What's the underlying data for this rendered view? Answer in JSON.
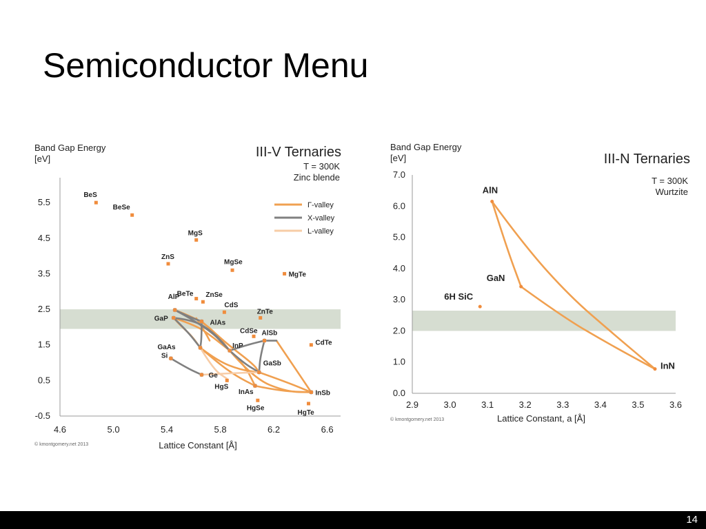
{
  "slide": {
    "title": "Semiconductor Menu",
    "page_number": "14"
  },
  "colors": {
    "gamma": "#f0a050",
    "x_valley": "#808080",
    "l_valley": "#f7cca6",
    "band": "#d6ddd1",
    "point": "#f08c3c"
  },
  "chart_data": [
    {
      "type": "scatter",
      "title": "III-V Ternaries",
      "subtitle": [
        "T = 300K",
        "Zinc blende"
      ],
      "ylabel": [
        "Band Gap Energy",
        "[eV]"
      ],
      "xlabel": "Lattice Constant [Å]",
      "xlim": [
        4.6,
        6.7
      ],
      "ylim": [
        -0.5,
        6.2
      ],
      "xticks": [
        4.6,
        5.0,
        5.4,
        5.8,
        6.2,
        6.6
      ],
      "yticks": [
        -0.5,
        0.5,
        1.5,
        2.5,
        3.5,
        4.5,
        5.5
      ],
      "xtick_labels": [
        "4.6",
        "5.0",
        "5.4",
        "5.8",
        "6.2",
        "6.6"
      ],
      "ytick_labels": [
        "-0.5",
        "0.5",
        "1.5",
        "2.5",
        "3.5",
        "4.5",
        "5.5"
      ],
      "highlight_band": [
        1.95,
        2.5
      ],
      "credit": "© kmontgomery.net 2013",
      "legend": {
        "placement": "right",
        "entries": [
          {
            "label": "Γ-valley",
            "color": "#f0a050"
          },
          {
            "label": "X-valley",
            "color": "#808080"
          },
          {
            "label": "L-valley",
            "color": "#f7cca6"
          }
        ]
      },
      "points": [
        {
          "name": "BeS",
          "x": 4.87,
          "y": 5.5
        },
        {
          "name": "BeSe",
          "x": 5.14,
          "y": 5.15
        },
        {
          "name": "MgS",
          "x": 5.62,
          "y": 4.45
        },
        {
          "name": "ZnS",
          "x": 5.41,
          "y": 3.78
        },
        {
          "name": "MgSe",
          "x": 5.89,
          "y": 3.6
        },
        {
          "name": "MgTe",
          "x": 6.28,
          "y": 3.5
        },
        {
          "name": "ZnSe",
          "x": 5.67,
          "y": 2.71
        },
        {
          "name": "BeTe",
          "x": 5.62,
          "y": 2.8
        },
        {
          "name": "AlAs",
          "x": 5.66,
          "y": 2.16
        },
        {
          "name": "CdS",
          "x": 5.83,
          "y": 2.42
        },
        {
          "name": "ZnTe",
          "x": 6.1,
          "y": 2.26
        },
        {
          "name": "AlP",
          "x": 5.46,
          "y": 2.48
        },
        {
          "name": "GaP",
          "x": 5.45,
          "y": 2.26
        },
        {
          "name": "CdSe",
          "x": 6.05,
          "y": 1.74
        },
        {
          "name": "AlSb",
          "x": 6.13,
          "y": 1.62
        },
        {
          "name": "CdTe",
          "x": 6.48,
          "y": 1.5
        },
        {
          "name": "InP",
          "x": 5.87,
          "y": 1.34
        },
        {
          "name": "GaAs",
          "x": 5.65,
          "y": 1.42
        },
        {
          "name": "Si",
          "x": 5.43,
          "y": 1.12
        },
        {
          "name": "GaSb",
          "x": 6.09,
          "y": 0.73
        },
        {
          "name": "Ge",
          "x": 5.66,
          "y": 0.66
        },
        {
          "name": "HgS",
          "x": 5.85,
          "y": 0.5
        },
        {
          "name": "InAs",
          "x": 6.06,
          "y": 0.35
        },
        {
          "name": "InSb",
          "x": 6.48,
          "y": 0.17
        },
        {
          "name": "HgSe",
          "x": 6.08,
          "y": -0.06
        },
        {
          "name": "HgTe",
          "x": 6.46,
          "y": -0.15
        }
      ],
      "curves": [
        {
          "valley": "gamma",
          "points": [
            [
              5.45,
              2.26
            ],
            [
              5.5,
              2.05
            ],
            [
              5.58,
              1.78
            ],
            [
              5.65,
              1.42
            ]
          ]
        },
        {
          "valley": "gamma",
          "points": [
            [
              5.46,
              2.48
            ],
            [
              5.62,
              2.25
            ],
            [
              5.75,
              1.9
            ],
            [
              5.87,
              1.34
            ]
          ]
        },
        {
          "valley": "gamma",
          "points": [
            [
              5.45,
              2.26
            ],
            [
              5.62,
              2.05
            ],
            [
              5.75,
              1.7
            ],
            [
              5.87,
              1.34
            ]
          ]
        },
        {
          "valley": "gamma",
          "points": [
            [
              5.66,
              2.16
            ],
            [
              5.74,
              1.9
            ],
            [
              5.86,
              1.5
            ],
            [
              6.05,
              0.95
            ],
            [
              6.09,
              0.73
            ]
          ]
        },
        {
          "valley": "gamma",
          "points": [
            [
              5.65,
              1.42
            ],
            [
              5.78,
              1.0
            ],
            [
              5.92,
              0.62
            ],
            [
              6.06,
              0.35
            ]
          ]
        },
        {
          "valley": "gamma",
          "points": [
            [
              5.87,
              1.34
            ],
            [
              5.98,
              0.95
            ],
            [
              6.06,
              0.35
            ]
          ]
        },
        {
          "valley": "gamma",
          "points": [
            [
              5.65,
              1.42
            ],
            [
              5.78,
              1.05
            ],
            [
              5.95,
              0.8
            ],
            [
              6.09,
              0.73
            ]
          ]
        },
        {
          "valley": "gamma",
          "points": [
            [
              6.09,
              0.73
            ],
            [
              6.3,
              0.45
            ],
            [
              6.48,
              0.17
            ]
          ]
        },
        {
          "valley": "gamma",
          "points": [
            [
              6.06,
              0.35
            ],
            [
              6.25,
              0.2
            ],
            [
              6.48,
              0.17
            ]
          ]
        },
        {
          "valley": "gamma",
          "points": [
            [
              6.22,
              1.62
            ],
            [
              6.35,
              0.9
            ],
            [
              6.48,
              0.17
            ]
          ]
        },
        {
          "valley": "gamma",
          "points": [
            [
              5.87,
              1.34
            ],
            [
              6.05,
              0.55
            ],
            [
              6.3,
              0.18
            ],
            [
              6.48,
              0.17
            ]
          ]
        },
        {
          "valley": "gamma",
          "points": [
            [
              5.62,
              2.25
            ],
            [
              5.68,
              1.9
            ],
            [
              5.72,
              1.62
            ]
          ]
        },
        {
          "valley": "x_valley",
          "points": [
            [
              5.45,
              2.26
            ],
            [
              5.55,
              1.9
            ],
            [
              5.65,
              1.42
            ]
          ]
        },
        {
          "valley": "x_valley",
          "points": [
            [
              5.46,
              2.48
            ],
            [
              5.56,
              2.3
            ],
            [
              5.66,
              2.16
            ]
          ]
        },
        {
          "valley": "x_valley",
          "points": [
            [
              5.45,
              2.26
            ],
            [
              5.6,
              2.2
            ],
            [
              5.75,
              1.85
            ],
            [
              5.87,
              1.34
            ]
          ]
        },
        {
          "valley": "x_valley",
          "points": [
            [
              5.46,
              2.48
            ],
            [
              5.7,
              2.0
            ],
            [
              5.87,
              1.34
            ]
          ]
        },
        {
          "valley": "x_valley",
          "points": [
            [
              5.87,
              1.34
            ],
            [
              6.0,
              1.5
            ],
            [
              6.13,
              1.62
            ]
          ]
        },
        {
          "valley": "x_valley",
          "points": [
            [
              6.13,
              1.62
            ],
            [
              6.1,
              1.2
            ],
            [
              6.09,
              0.73
            ]
          ]
        },
        {
          "valley": "x_valley",
          "points": [
            [
              6.13,
              1.62
            ],
            [
              6.22,
              1.62
            ]
          ]
        },
        {
          "valley": "x_valley",
          "points": [
            [
              5.43,
              1.12
            ],
            [
              5.55,
              0.85
            ],
            [
              5.66,
              0.66
            ]
          ]
        },
        {
          "valley": "x_valley",
          "points": [
            [
              5.66,
              2.16
            ],
            [
              5.66,
              1.7
            ],
            [
              5.65,
              1.42
            ]
          ]
        },
        {
          "valley": "x_valley",
          "points": [
            [
              5.87,
              1.34
            ],
            [
              5.97,
              1.0
            ],
            [
              6.09,
              0.73
            ]
          ]
        },
        {
          "valley": "l_valley",
          "points": [
            [
              5.66,
              0.66
            ],
            [
              5.85,
              0.7
            ],
            [
              6.09,
              0.73
            ]
          ]
        },
        {
          "valley": "l_valley",
          "points": [
            [
              5.65,
              1.42
            ],
            [
              5.75,
              0.8
            ],
            [
              5.85,
              0.55
            ]
          ]
        }
      ],
      "junctions": [
        [
          5.46,
          2.48
        ],
        [
          5.45,
          2.26
        ],
        [
          5.66,
          2.16
        ],
        [
          5.65,
          1.42
        ],
        [
          5.87,
          1.34
        ],
        [
          6.13,
          1.62
        ],
        [
          6.09,
          0.73
        ],
        [
          6.06,
          0.35
        ],
        [
          6.48,
          0.17
        ],
        [
          5.43,
          1.12
        ],
        [
          5.66,
          0.66
        ]
      ]
    },
    {
      "type": "scatter",
      "title": "III-N Ternaries",
      "subtitle": [
        "T = 300K",
        "Wurtzite"
      ],
      "ylabel": [
        "Band Gap Energy",
        "[eV]"
      ],
      "xlabel": "Lattice Constant, a [Å]",
      "xlim": [
        2.9,
        3.6
      ],
      "ylim": [
        0.0,
        7.0
      ],
      "xticks": [
        2.9,
        3.0,
        3.1,
        3.2,
        3.3,
        3.4,
        3.5,
        3.6
      ],
      "yticks": [
        0.0,
        1.0,
        2.0,
        3.0,
        4.0,
        5.0,
        6.0,
        7.0
      ],
      "xtick_labels": [
        "2.9",
        "3.0",
        "3.1",
        "3.2",
        "3.3",
        "3.4",
        "3.5",
        "3.6"
      ],
      "ytick_labels": [
        "0.0",
        "1.0",
        "2.0",
        "3.0",
        "4.0",
        "5.0",
        "6.0",
        "7.0"
      ],
      "highlight_band": [
        2.0,
        2.65
      ],
      "credit": "© kmontgomery.net 2013",
      "points": [
        {
          "name": "AlN",
          "x": 3.112,
          "y": 6.15
        },
        {
          "name": "GaN",
          "x": 3.189,
          "y": 3.42
        },
        {
          "name": "InN",
          "x": 3.545,
          "y": 0.78
        },
        {
          "name": "6H SiC",
          "x": 3.08,
          "y": 2.78
        }
      ],
      "curves": [
        {
          "valley": "gamma",
          "points": [
            [
              3.112,
              6.15
            ],
            [
              3.15,
              4.7
            ],
            [
              3.189,
              3.42
            ]
          ]
        },
        {
          "valley": "gamma",
          "points": [
            [
              3.189,
              3.42
            ],
            [
              3.3,
              2.45
            ],
            [
              3.42,
              1.6
            ],
            [
              3.545,
              0.78
            ]
          ]
        },
        {
          "valley": "gamma",
          "points": [
            [
              3.112,
              6.15
            ],
            [
              3.2,
              4.7
            ],
            [
              3.32,
              3.1
            ],
            [
              3.43,
              1.95
            ],
            [
              3.545,
              0.78
            ]
          ]
        }
      ]
    }
  ]
}
